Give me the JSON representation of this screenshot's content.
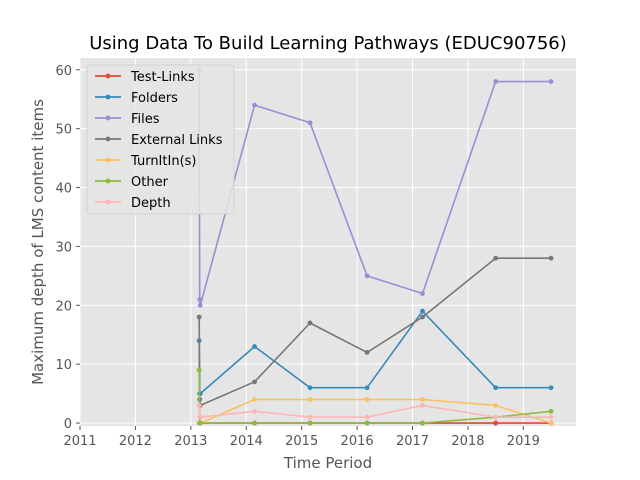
{
  "chart_data": {
    "type": "line",
    "title": "Using Data To Build Learning Pathways (EDUC90756)",
    "xlabel": "Time Period",
    "ylabel": "Maximum depth of LMS content items",
    "xlim": [
      2011.0,
      2019.95
    ],
    "ylim": [
      -0.5,
      62
    ],
    "xticks": [
      2011,
      2012,
      2013,
      2014,
      2015,
      2016,
      2017,
      2018,
      2019
    ],
    "yticks": [
      0,
      10,
      20,
      30,
      40,
      50,
      60
    ],
    "grid": true,
    "legend_position": "top-left",
    "x": [
      2013.15,
      2013.16,
      2013.17,
      2014.15,
      2015.15,
      2016.18,
      2017.18,
      2018.5,
      2019.5
    ],
    "series": [
      {
        "name": "Test-Links",
        "color": "#E24A33",
        "values": [
          0,
          0,
          0,
          0,
          0,
          0,
          0,
          0,
          0
        ]
      },
      {
        "name": "Folders",
        "color": "#348ABD",
        "values": [
          14,
          5,
          5,
          13,
          6,
          6,
          19,
          6,
          6
        ]
      },
      {
        "name": "Files",
        "color": "#988ED5",
        "values": [
          60,
          21,
          20,
          54,
          51,
          25,
          22,
          58,
          58
        ]
      },
      {
        "name": "External Links",
        "color": "#777777",
        "values": [
          18,
          4,
          3,
          7,
          17,
          12,
          18,
          28,
          28
        ]
      },
      {
        "name": "TurnItIn(s)",
        "color": "#FBC15E",
        "values": [
          0,
          0,
          0,
          4,
          4,
          4,
          4,
          3,
          0
        ]
      },
      {
        "name": "Other",
        "color": "#8EBA42",
        "values": [
          9,
          0,
          0,
          0,
          0,
          0,
          0,
          1,
          2
        ]
      },
      {
        "name": "Depth",
        "color": "#FFB5B8",
        "values": [
          3,
          1,
          1,
          2,
          1,
          1,
          3,
          1,
          1
        ]
      }
    ]
  }
}
